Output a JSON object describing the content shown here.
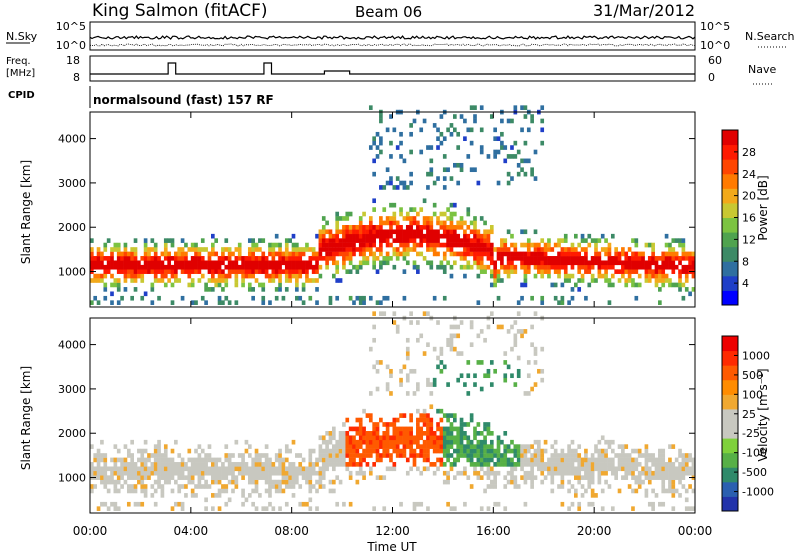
{
  "header": {
    "station": "King Salmon (fitACF)",
    "beam": "Beam 06",
    "date": "31/Mar/2012"
  },
  "top_panels": {
    "nsky_label": "N.Sky",
    "nsky_ticks": [
      "10^5",
      "10^0"
    ],
    "nsearch_label": "N.Search",
    "nsearch_ticks": [
      "10^5",
      "10^0"
    ],
    "freq_label_1": "Freq.",
    "freq_label_2": "[MHz]",
    "freq_ticks": [
      "18",
      "8"
    ],
    "nave_label": "Nave",
    "nave_ticks": [
      "60",
      "0"
    ],
    "cpid_label": "CPID",
    "cpid_value": "normalsound (fast) 157 RF"
  },
  "chart_data": [
    {
      "type": "heatmap",
      "name": "power",
      "ylabel": "Slant Range [km]",
      "yticks": [
        "1000",
        "2000",
        "3000",
        "4000"
      ],
      "ylim": [
        200,
        4600
      ],
      "xlim": [
        0,
        24
      ],
      "colorbar_label": "Power [dB]",
      "colorbar_ticks": [
        "28",
        "24",
        "20",
        "16",
        "12",
        "8",
        "4"
      ],
      "colorbar_colors": [
        "#0000ff",
        "#1f3fc8",
        "#2f6fa0",
        "#3c8a66",
        "#4fa34f",
        "#7cc341",
        "#c8c832",
        "#f2a91a",
        "#ff7a00",
        "#ff4500",
        "#ff1a00",
        "#e00000"
      ]
    },
    {
      "type": "heatmap",
      "name": "velocity",
      "ylabel": "Slant Range [km]",
      "yticks": [
        "1000",
        "2000",
        "3000",
        "4000"
      ],
      "ylim": [
        200,
        4600
      ],
      "xlim": [
        0,
        24
      ],
      "xlabel": "Time UT",
      "xticks": [
        "00:00",
        "04:00",
        "08:00",
        "12:00",
        "16:00",
        "20:00",
        "00:00"
      ],
      "colorbar_label": "Velocity [m s⁻¹]",
      "colorbar_ticks": [
        "1000",
        "500",
        "100",
        "25",
        "-25",
        "-100",
        "-500",
        "-1000"
      ],
      "colorbar_colors": [
        "#2233aa",
        "#2a5fb0",
        "#2f8a6a",
        "#57b046",
        "#7fd13b",
        "#c8c8c0",
        "#c8c8c0",
        "#f0a830",
        "#ff8c00",
        "#ff5a00",
        "#ff2a00",
        "#ee0000"
      ]
    }
  ]
}
